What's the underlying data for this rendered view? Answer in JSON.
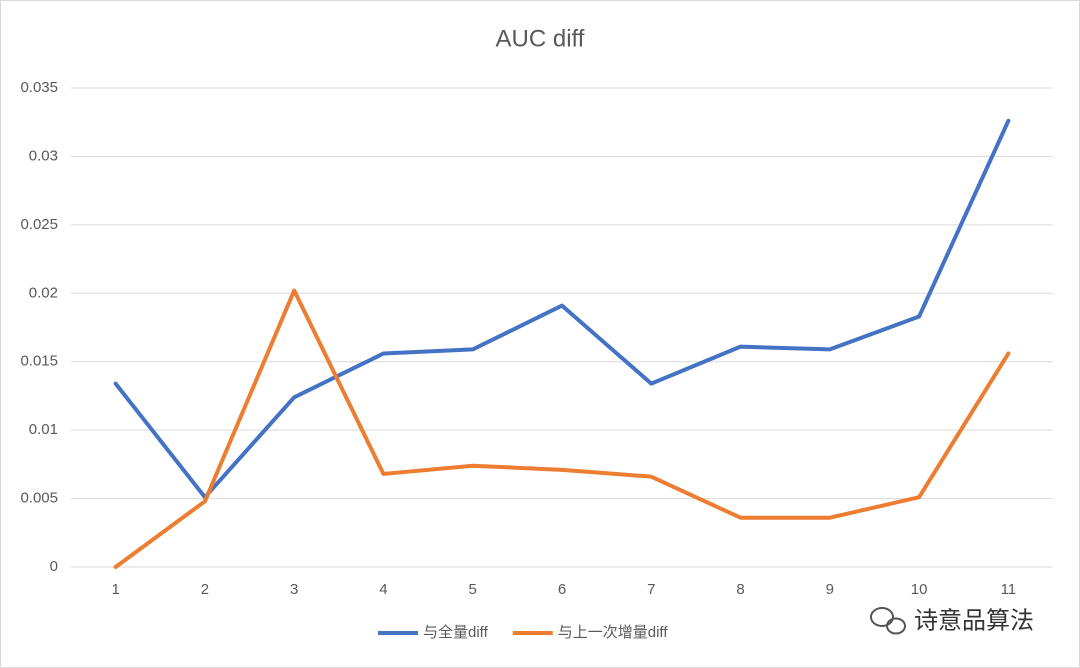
{
  "chart_data": {
    "type": "line",
    "title": "AUC diff",
    "categories": [
      "1",
      "2",
      "3",
      "4",
      "5",
      "6",
      "7",
      "8",
      "9",
      "10",
      "11"
    ],
    "series": [
      {
        "name": "与全量diff",
        "color": "#4472c4",
        "values": [
          0.0134,
          0.0051,
          0.0124,
          0.0156,
          0.0159,
          0.0191,
          0.0134,
          0.0161,
          0.0159,
          0.0183,
          0.0326
        ]
      },
      {
        "name": "与上一次增量diff",
        "color": "#ed7d31",
        "values": [
          0,
          0.0048,
          0.0202,
          0.0068,
          0.0074,
          0.0071,
          0.0066,
          0.0036,
          0.0036,
          0.0051,
          0.0156
        ]
      }
    ],
    "ylim": [
      0,
      0.035
    ],
    "yticks": [
      0,
      0.005,
      0.01,
      0.015,
      0.02,
      0.025,
      0.03,
      0.035
    ],
    "grid": true,
    "legend": "bottom"
  },
  "watermark": "诗意品算法"
}
